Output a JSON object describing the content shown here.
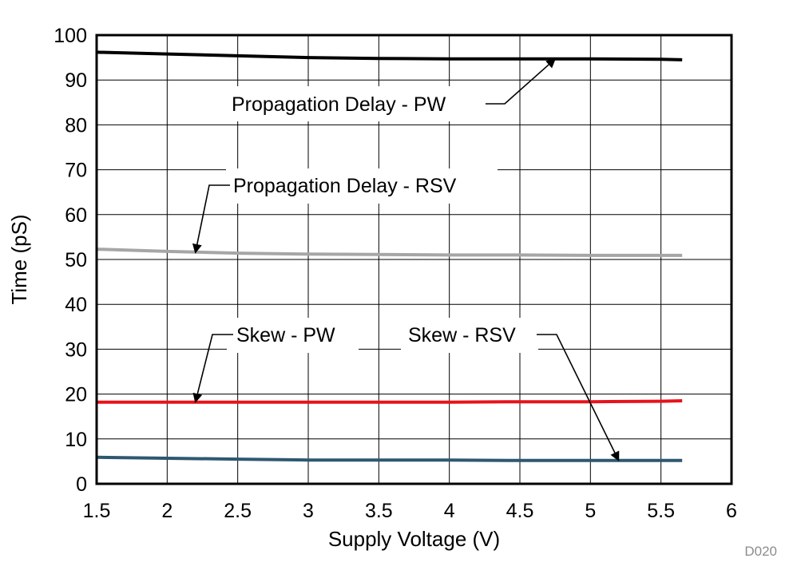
{
  "chart_data": {
    "type": "line",
    "title": "",
    "xlabel": "Supply Voltage (V)",
    "ylabel": "Time (pS)",
    "xlim": [
      1.5,
      6
    ],
    "ylim": [
      0,
      100
    ],
    "xticks": [
      1.5,
      2,
      2.5,
      3,
      3.5,
      4,
      4.5,
      5,
      5.5,
      6
    ],
    "yticks": [
      0,
      10,
      20,
      30,
      40,
      50,
      60,
      70,
      80,
      90,
      100
    ],
    "grid": true,
    "series": [
      {
        "name": "Propagation Delay - PW",
        "color": "#000000",
        "x": [
          1.5,
          2.0,
          2.5,
          3.0,
          3.5,
          4.0,
          4.5,
          5.0,
          5.5,
          5.65
        ],
        "y": [
          96.2,
          95.8,
          95.4,
          95.0,
          94.8,
          94.7,
          94.7,
          94.7,
          94.6,
          94.5
        ]
      },
      {
        "name": "Propagation Delay - RSV",
        "color": "#a6a6a6",
        "x": [
          1.5,
          2.0,
          2.5,
          3.0,
          3.5,
          4.0,
          4.5,
          5.0,
          5.5,
          5.65
        ],
        "y": [
          52.3,
          51.8,
          51.4,
          51.2,
          51.1,
          51.0,
          51.0,
          50.9,
          50.9,
          50.9
        ]
      },
      {
        "name": "Skew - PW",
        "color": "#e8131b",
        "x": [
          1.5,
          2.0,
          2.5,
          3.0,
          3.5,
          4.0,
          4.5,
          5.0,
          5.5,
          5.65
        ],
        "y": [
          18.2,
          18.2,
          18.2,
          18.2,
          18.2,
          18.2,
          18.3,
          18.3,
          18.4,
          18.5
        ]
      },
      {
        "name": "Skew - RSV",
        "color": "#2e5871",
        "x": [
          1.5,
          2.0,
          2.5,
          3.0,
          3.5,
          4.0,
          4.5,
          5.0,
          5.5,
          5.65
        ],
        "y": [
          5.9,
          5.7,
          5.5,
          5.3,
          5.3,
          5.3,
          5.2,
          5.2,
          5.2,
          5.2
        ]
      }
    ],
    "annotations": [
      {
        "text": "Propagation Delay - PW",
        "series": 0,
        "target": [
          4.75,
          94.7
        ]
      },
      {
        "text": "Propagation Delay - RSV",
        "series": 1,
        "target": [
          2.2,
          51.5
        ]
      },
      {
        "text": "Skew - PW",
        "series": 2,
        "target": [
          2.2,
          18.2
        ]
      },
      {
        "text": "Skew - RSV",
        "series": 3,
        "target": [
          5.2,
          5.2
        ]
      }
    ],
    "figure_code": "D020"
  }
}
